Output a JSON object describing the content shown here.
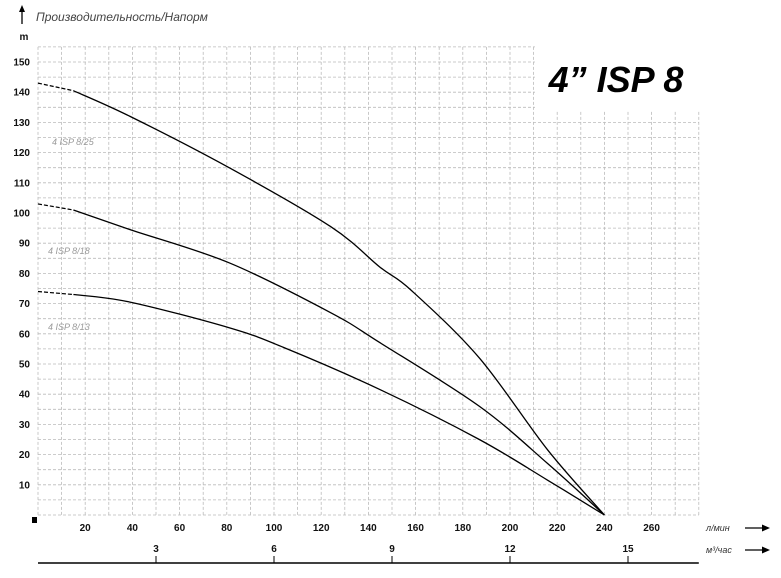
{
  "chart_data": {
    "type": "line",
    "title": "Производительность/Напорм",
    "model_label": "4” ISP 8",
    "ylabel": "m",
    "xlabel": "л/мин",
    "x2label": "м³/час",
    "xlim": [
      0,
      280
    ],
    "ylim": [
      0,
      155
    ],
    "x_ticks": [
      20,
      40,
      60,
      80,
      100,
      120,
      140,
      160,
      180,
      200,
      220,
      240,
      260
    ],
    "y_ticks": [
      10,
      20,
      30,
      40,
      50,
      60,
      70,
      80,
      90,
      100,
      110,
      120,
      130,
      140,
      150
    ],
    "x2_ticks": [
      3,
      6,
      9,
      12,
      15
    ],
    "grid": true,
    "dashed_until_x": 15,
    "series": [
      {
        "name": "4 ISP 8/25",
        "x": [
          0,
          15,
          39,
          81,
          124,
          145,
          158,
          187,
          216,
          240
        ],
        "y": [
          143,
          140.5,
          132,
          115,
          95.5,
          82,
          74.5,
          52,
          21.5,
          0
        ]
      },
      {
        "name": "4 ISP 8/18",
        "x": [
          0,
          15,
          39,
          81,
          124,
          145,
          187,
          216,
          240
        ],
        "y": [
          103,
          101,
          94.5,
          83.5,
          67,
          57,
          36,
          17,
          0
        ]
      },
      {
        "name": "4 ISP 8/13",
        "x": [
          0,
          15,
          39,
          81,
          104,
          145,
          187,
          216,
          240
        ],
        "y": [
          74,
          73,
          70.5,
          62,
          55.5,
          41.5,
          25,
          11.5,
          0
        ]
      }
    ],
    "colors": {
      "line": "#000000",
      "grid": "#bbbbbb",
      "series_label": "#999999"
    }
  }
}
